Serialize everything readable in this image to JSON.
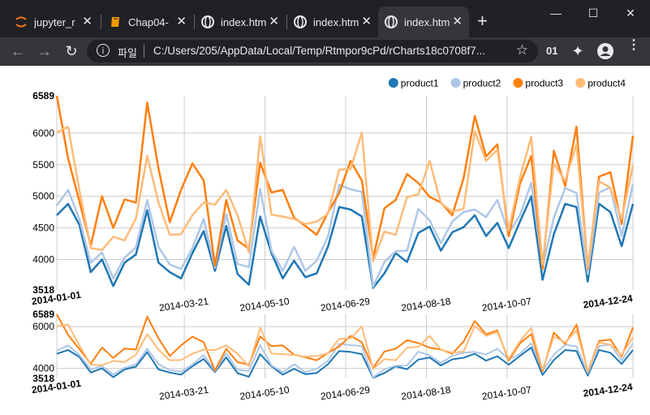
{
  "browser": {
    "tabs": [
      {
        "title": "jupyter_r",
        "icon": "jupyter-icon",
        "active": false
      },
      {
        "title": "Chap04-",
        "icon": "book-icon",
        "active": false
      },
      {
        "title": "index.htm",
        "icon": "globe-icon",
        "active": false
      },
      {
        "title": "index.htm",
        "icon": "globe-icon",
        "active": false
      },
      {
        "title": "index.htm",
        "icon": "globe-icon",
        "active": true
      }
    ],
    "new_tab": "+",
    "window_controls": {
      "minimize": "—",
      "maximize": "☐",
      "close": "✕"
    },
    "toolbar": {
      "back": "←",
      "forward": "→",
      "reload": "↻",
      "scheme_label": "파일",
      "url": "C:/Users/205/AppData/Local/Temp/Rtmpor9cPd/rCharts18c0708f7...",
      "star": "☆",
      "ext_label": "01",
      "puzzle": "✦",
      "menu": "⋮"
    }
  },
  "chart_data": {
    "type": "line",
    "legend": [
      "product1",
      "product2",
      "product3",
      "product4"
    ],
    "legend_position": "top-right",
    "colors": [
      "#1f77b4",
      "#aec7e8",
      "#ff7f0e",
      "#ffbb78"
    ],
    "y_ticks": [
      "3518",
      "4000",
      "4500",
      "5000",
      "5500",
      "6000",
      "6589"
    ],
    "ylim": [
      3518,
      6589
    ],
    "x_ticks": [
      "2014-01-01",
      "2014-03-21",
      "2014-05-10",
      "2014-06-29",
      "2014-08-18",
      "2014-10-07",
      "2014-12-24"
    ],
    "xlim": [
      "2014-01-01",
      "2014-12-24"
    ],
    "context_y_ticks": [
      "3518",
      "4000",
      "6000",
      "6589"
    ],
    "series": [
      {
        "name": "product1",
        "values": [
          4700,
          4880,
          4550,
          3800,
          4000,
          3580,
          3950,
          4080,
          4780,
          3950,
          3800,
          3700,
          4100,
          4450,
          3820,
          4530,
          3770,
          3600,
          4680,
          4100,
          3700,
          3980,
          3720,
          3780,
          4200,
          4830,
          4790,
          4680,
          3550,
          3780,
          4100,
          3960,
          4420,
          4520,
          4140,
          4430,
          4510,
          4700,
          4370,
          4580,
          4180,
          4600,
          5000,
          3680,
          4400,
          4880,
          4830,
          3650,
          4880,
          4750,
          4210,
          4880
        ]
      },
      {
        "name": "product2",
        "values": [
          4850,
          5100,
          4640,
          3950,
          4110,
          3700,
          4030,
          4190,
          4940,
          4200,
          3920,
          3850,
          4180,
          4640,
          3870,
          4720,
          3930,
          3880,
          5120,
          4140,
          3820,
          4200,
          3820,
          3980,
          4360,
          5180,
          5110,
          5070,
          3570,
          3960,
          4130,
          4140,
          4800,
          4620,
          4260,
          4600,
          4750,
          4790,
          4670,
          4940,
          4420,
          4700,
          5210,
          3880,
          4660,
          5130,
          5050,
          3770,
          5060,
          5140,
          4370,
          5190
        ]
      },
      {
        "name": "product3",
        "values": [
          6589,
          5600,
          4920,
          4220,
          5000,
          4500,
          4950,
          4900,
          6480,
          5440,
          4590,
          5100,
          5520,
          5250,
          3900,
          4940,
          4300,
          4170,
          5530,
          5060,
          5100,
          4660,
          4530,
          4390,
          4740,
          5050,
          5560,
          5250,
          4020,
          4810,
          4940,
          5350,
          5210,
          4990,
          4900,
          4700,
          5280,
          6270,
          5630,
          5820,
          4370,
          5200,
          5640,
          3850,
          5720,
          5160,
          6100,
          3850,
          5310,
          5380,
          4560,
          5960
        ]
      },
      {
        "name": "product4",
        "values": [
          6010,
          6100,
          5100,
          4180,
          4150,
          4360,
          4300,
          4650,
          5640,
          4900,
          4390,
          4400,
          4700,
          4900,
          4870,
          5100,
          4700,
          4110,
          5950,
          4710,
          4680,
          4640,
          4560,
          4600,
          4720,
          5420,
          5430,
          6010,
          3970,
          4440,
          4390,
          4990,
          5030,
          5560,
          4890,
          4760,
          4800,
          6030,
          5560,
          5740,
          4460,
          5300,
          5940,
          3920,
          5520,
          5240,
          5820,
          3870,
          5240,
          5130,
          4640,
          5490
        ]
      }
    ]
  }
}
